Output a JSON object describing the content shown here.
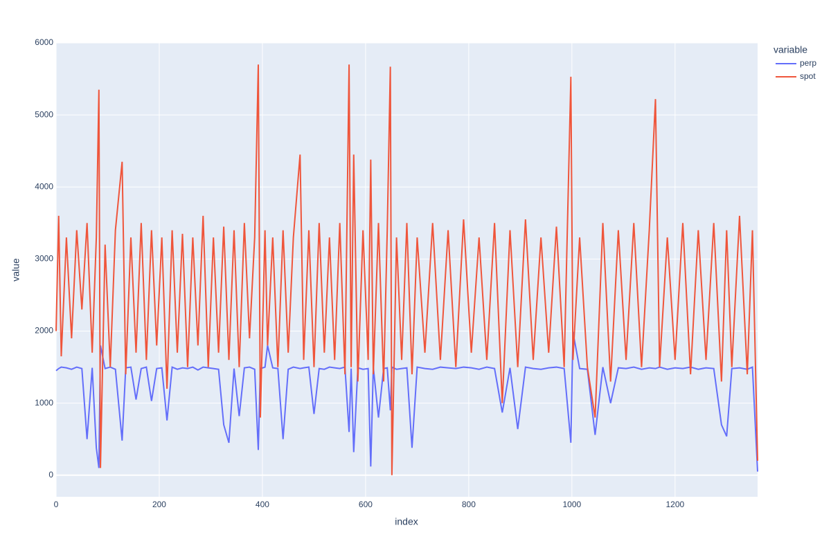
{
  "chart_data": {
    "type": "line",
    "x_label": "index",
    "y_label": "value",
    "legend_title": "variable",
    "legend_position": "right",
    "grid": true,
    "xlim": [
      0,
      1360
    ],
    "ylim": [
      -300,
      6000
    ],
    "xticks": [
      0,
      200,
      400,
      600,
      800,
      1000,
      1200
    ],
    "yticks": [
      0,
      1000,
      2000,
      3000,
      4000,
      5000,
      6000
    ],
    "x": [
      0,
      5,
      10,
      20,
      30,
      40,
      50,
      60,
      70,
      78,
      83,
      86,
      95,
      105,
      115,
      128,
      135,
      145,
      155,
      165,
      175,
      185,
      195,
      205,
      215,
      225,
      235,
      245,
      255,
      265,
      275,
      285,
      295,
      305,
      315,
      325,
      335,
      345,
      355,
      365,
      375,
      385,
      392,
      396,
      405,
      410,
      420,
      430,
      440,
      450,
      460,
      473,
      480,
      490,
      500,
      510,
      520,
      530,
      540,
      550,
      560,
      568,
      572,
      577,
      585,
      595,
      605,
      610,
      615,
      625,
      635,
      642,
      648,
      651,
      660,
      670,
      680,
      690,
      700,
      715,
      730,
      745,
      760,
      775,
      790,
      805,
      820,
      835,
      850,
      865,
      880,
      895,
      910,
      925,
      940,
      955,
      970,
      985,
      998,
      1002,
      1015,
      1030,
      1045,
      1060,
      1075,
      1090,
      1105,
      1120,
      1135,
      1150,
      1162,
      1170,
      1185,
      1200,
      1215,
      1230,
      1245,
      1260,
      1275,
      1290,
      1300,
      1310,
      1325,
      1340,
      1350,
      1360
    ],
    "series": [
      {
        "name": "perp",
        "color": "#636efa",
        "values": [
          1450,
          1480,
          1500,
          1490,
          1470,
          1500,
          1480,
          500,
          1490,
          380,
          100,
          1800,
          1480,
          1500,
          1470,
          480,
          1490,
          1500,
          1050,
          1480,
          1500,
          1030,
          1480,
          1490,
          760,
          1500,
          1470,
          1490,
          1480,
          1500,
          1460,
          1500,
          1490,
          1480,
          1470,
          700,
          450,
          1480,
          820,
          1490,
          1500,
          1470,
          350,
          1480,
          1500,
          1800,
          1490,
          1480,
          500,
          1470,
          1500,
          1480,
          1490,
          1500,
          850,
          1480,
          1470,
          1500,
          1490,
          1480,
          1500,
          600,
          1480,
          320,
          1490,
          1470,
          1480,
          120,
          1500,
          800,
          1480,
          1490,
          900,
          1500,
          1470,
          1480,
          1490,
          380,
          1500,
          1480,
          1470,
          1500,
          1490,
          1480,
          1500,
          1490,
          1470,
          1500,
          1480,
          870,
          1490,
          640,
          1500,
          1480,
          1470,
          1490,
          1500,
          1480,
          450,
          1990,
          1480,
          1470,
          560,
          1500,
          1000,
          1490,
          1480,
          1500,
          1470,
          1490,
          1480,
          1500,
          1470,
          1490,
          1480,
          1500,
          1470,
          1490,
          1480,
          700,
          540,
          1480,
          1490,
          1470,
          1500,
          50
        ]
      },
      {
        "name": "spot",
        "color": "#ef553b",
        "values": [
          2000,
          3600,
          1650,
          3300,
          1900,
          3400,
          2300,
          3500,
          1700,
          3300,
          5350,
          100,
          3200,
          1500,
          3400,
          4350,
          1400,
          3300,
          1700,
          3500,
          1600,
          3400,
          1800,
          3300,
          1200,
          3400,
          1700,
          3350,
          1500,
          3300,
          1800,
          3600,
          1500,
          3300,
          1700,
          3450,
          1600,
          3400,
          1500,
          3500,
          1900,
          3300,
          5700,
          800,
          3400,
          1800,
          3300,
          1500,
          3400,
          1700,
          3300,
          4450,
          1600,
          3400,
          1500,
          3500,
          1700,
          3300,
          1600,
          3500,
          1400,
          5700,
          1500,
          4450,
          1300,
          3400,
          1600,
          4380,
          1400,
          3500,
          1300,
          3400,
          5670,
          0,
          3300,
          1600,
          3500,
          1400,
          3300,
          1700,
          3500,
          1600,
          3400,
          1500,
          3550,
          1700,
          3300,
          1600,
          3500,
          1000,
          3400,
          1500,
          3550,
          1600,
          3300,
          1700,
          3450,
          1500,
          5530,
          1600,
          3300,
          1500,
          800,
          3500,
          1300,
          3400,
          1600,
          3500,
          1500,
          3400,
          5220,
          1500,
          3300,
          1600,
          3500,
          1400,
          3400,
          1600,
          3500,
          1300,
          3400,
          1500,
          3600,
          1400,
          3400,
          200
        ]
      }
    ]
  }
}
